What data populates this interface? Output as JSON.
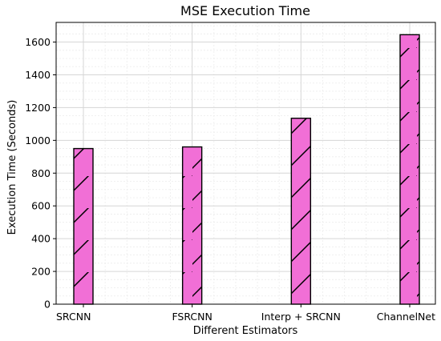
{
  "chart_data": {
    "type": "bar",
    "title": "MSE Execution Time",
    "xlabel": "Different Estimators",
    "ylabel": "Execution Time (Seconds)",
    "categories": [
      "SRCNN",
      "FSRCNN",
      "Interp + SRCNN",
      "ChannelNet"
    ],
    "values": [
      950,
      960,
      1135,
      1645
    ],
    "ylim": [
      0,
      1720
    ],
    "yticks": [
      0,
      200,
      400,
      600,
      800,
      1000,
      1200,
      1400,
      1600
    ],
    "grid": true,
    "bar_color": "#f16fd6",
    "edge_color": "#000000",
    "hatch": "/"
  }
}
